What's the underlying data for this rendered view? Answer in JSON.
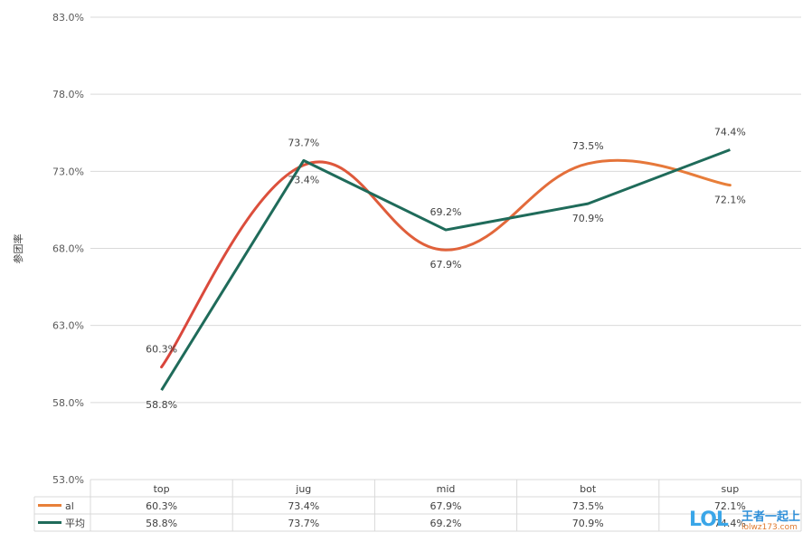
{
  "chart_data": {
    "type": "line",
    "title": "",
    "xlabel": "",
    "ylabel": "参团率",
    "categories": [
      "top",
      "jug",
      "mid",
      "bot",
      "sup"
    ],
    "ylim": [
      53.0,
      83.0
    ],
    "yticks": [
      "53.0%",
      "58.0%",
      "63.0%",
      "68.0%",
      "73.0%",
      "78.0%",
      "83.0%"
    ],
    "grid": true,
    "legend": "data-table",
    "series": [
      {
        "name": "al",
        "values": [
          60.3,
          73.4,
          67.9,
          73.5,
          72.1
        ],
        "labels": [
          "60.3%",
          "73.4%",
          "67.9%",
          "73.5%",
          "72.1%"
        ],
        "smooth": true,
        "color_start": "#d9453c",
        "color_end": "#e8803a"
      },
      {
        "name": "平均",
        "values": [
          58.8,
          73.7,
          69.2,
          70.9,
          74.4
        ],
        "labels": [
          "58.8%",
          "73.7%",
          "69.2%",
          "70.9%",
          "74.4%"
        ],
        "smooth": false,
        "color": "#1f6b5a"
      }
    ]
  },
  "watermark": {
    "logo": "LOL",
    "text": "王者一起上",
    "url": "lolwz173.com"
  }
}
